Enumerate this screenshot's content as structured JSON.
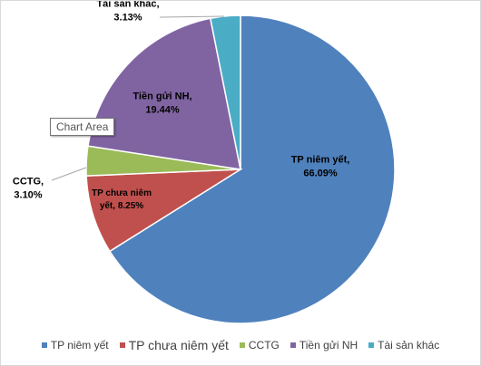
{
  "tooltip": "Chart Area",
  "chart_data": {
    "type": "pie",
    "categories": [
      "TP niêm yết",
      "TP chưa niêm yết",
      "CCTG",
      "Tiền gửi NH",
      "Tài sản khác"
    ],
    "values": [
      66.09,
      8.25,
      3.1,
      19.44,
      3.13
    ],
    "unit": "%",
    "data_labels": [
      [
        "TP niêm yết,",
        "66.09%"
      ],
      [
        "TP chưa niêm",
        "yết, 8.25%"
      ],
      [
        "CCTG,",
        "3.10%"
      ],
      [
        "Tiền gửi NH,",
        "19.44%"
      ],
      [
        "Tài sản khác,",
        "3.13%"
      ]
    ],
    "colors": [
      "#4f81bd",
      "#c0504d",
      "#9bbb59",
      "#8064a2",
      "#4bacc6"
    ],
    "start_angle_deg": 0,
    "direction": "clockwise",
    "legend_position": "bottom",
    "title": ""
  }
}
